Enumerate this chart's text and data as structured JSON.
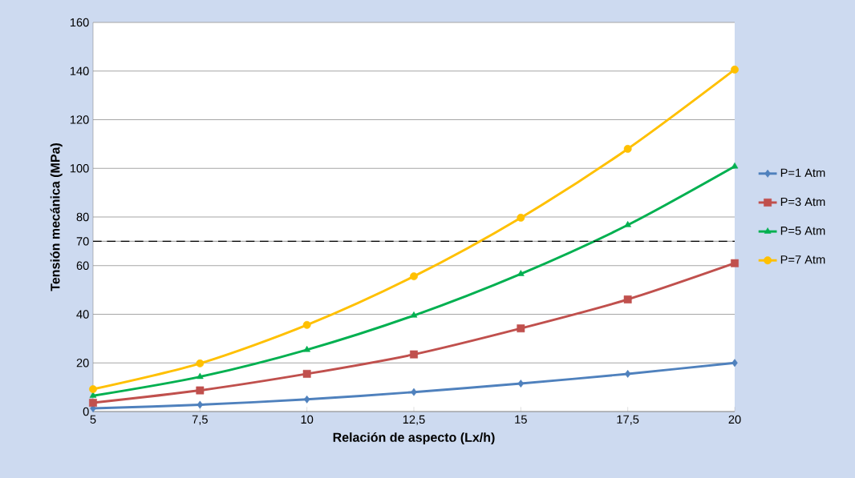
{
  "chart_data": {
    "type": "line",
    "xlabel": "Relación de aspecto (Lx/h)",
    "ylabel": "Tensión mecánica (MPa)",
    "x": [
      5,
      7.5,
      10,
      12.5,
      15,
      17.5,
      20
    ],
    "xlim": [
      5,
      20
    ],
    "xticks": [
      5,
      {
        "value": 7.5,
        "label": "7,5"
      },
      10,
      {
        "value": 12.5,
        "label": "12,5"
      },
      15,
      {
        "value": 17.5,
        "label": "17,5"
      },
      20
    ],
    "ylim": [
      0,
      160
    ],
    "yticks": [
      0,
      20,
      40,
      60,
      70,
      80,
      100,
      120,
      140,
      160
    ],
    "grid": "y",
    "legend": "right",
    "ref_lines": [
      {
        "axis": "y",
        "value": 70,
        "color": "#000000",
        "line_style": "dashed"
      }
    ],
    "series": [
      {
        "name": "P=1 Atm",
        "color": "#4f81bd",
        "marker": "diamond",
        "values": [
          1.3,
          2.8,
          5.0,
          8.0,
          11.5,
          15.5,
          20.0
        ]
      },
      {
        "name": "P=3 Atm",
        "color": "#c0504d",
        "marker": "square",
        "values": [
          3.6,
          8.7,
          15.5,
          23.5,
          34.2,
          46.1,
          61.0
        ]
      },
      {
        "name": "P=5 Atm",
        "color": "#00b050",
        "marker": "triangle",
        "values": [
          6.5,
          14.3,
          25.4,
          39.5,
          56.6,
          76.7,
          100.8
        ]
      },
      {
        "name": "P=7 Atm",
        "color": "#ffc000",
        "marker": "circle",
        "values": [
          9.2,
          19.8,
          35.6,
          55.6,
          79.7,
          108.0,
          140.6
        ]
      }
    ]
  }
}
